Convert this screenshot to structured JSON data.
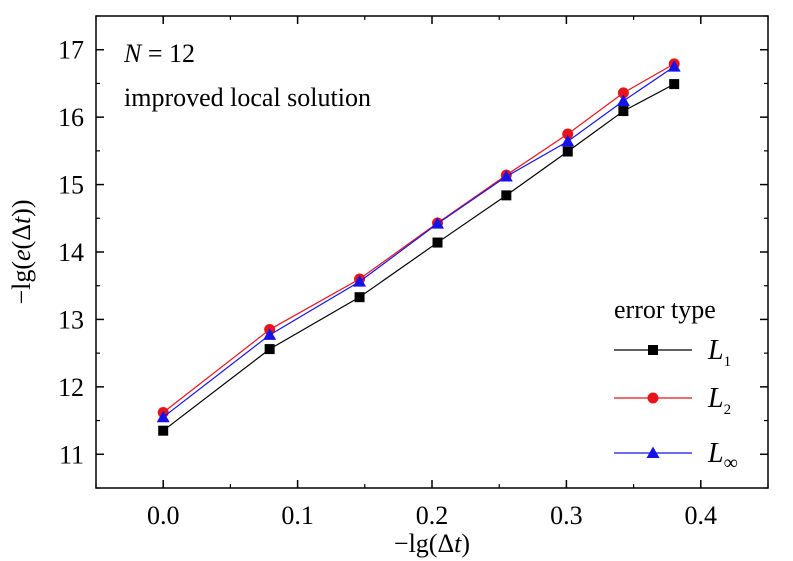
{
  "chart_data": {
    "type": "line",
    "xlabel": "−lg(Δt)",
    "ylabel": "−lg(e(Δt))",
    "xlim": [
      -0.05,
      0.45
    ],
    "ylim": [
      10.5,
      17.5
    ],
    "xticks": [
      0.0,
      0.1,
      0.2,
      0.3,
      0.4
    ],
    "xtick_labels": [
      "0.0",
      "0.1",
      "0.2",
      "0.3",
      "0.4"
    ],
    "yticks": [
      11,
      12,
      13,
      14,
      15,
      16,
      17
    ],
    "ytick_labels": [
      "11",
      "12",
      "13",
      "14",
      "15",
      "16",
      "17"
    ],
    "grid": false,
    "annotations": [
      "N = 12",
      "improved local solution"
    ],
    "legend": {
      "title": "error type",
      "position": "bottom-right"
    },
    "x": [
      0.0,
      0.0792,
      0.1461,
      0.2041,
      0.2553,
      0.301,
      0.3424,
      0.3802
    ],
    "series": [
      {
        "name": "L1",
        "label_main": "L",
        "label_sub": "1",
        "color": "#000000",
        "marker": "square",
        "values": [
          11.35,
          12.56,
          13.33,
          14.14,
          14.84,
          15.49,
          16.09,
          16.49
        ]
      },
      {
        "name": "L2",
        "label_main": "L",
        "label_sub": "2",
        "color": "#e8141c",
        "marker": "circle",
        "values": [
          11.62,
          12.85,
          13.6,
          14.43,
          15.14,
          15.75,
          16.36,
          16.79
        ]
      },
      {
        "name": "L∞",
        "label_main": "L",
        "label_sub": "∞",
        "color": "#1414e8",
        "marker": "triangle",
        "values": [
          11.55,
          12.77,
          13.56,
          14.42,
          15.12,
          15.64,
          16.24,
          16.75
        ]
      }
    ]
  }
}
